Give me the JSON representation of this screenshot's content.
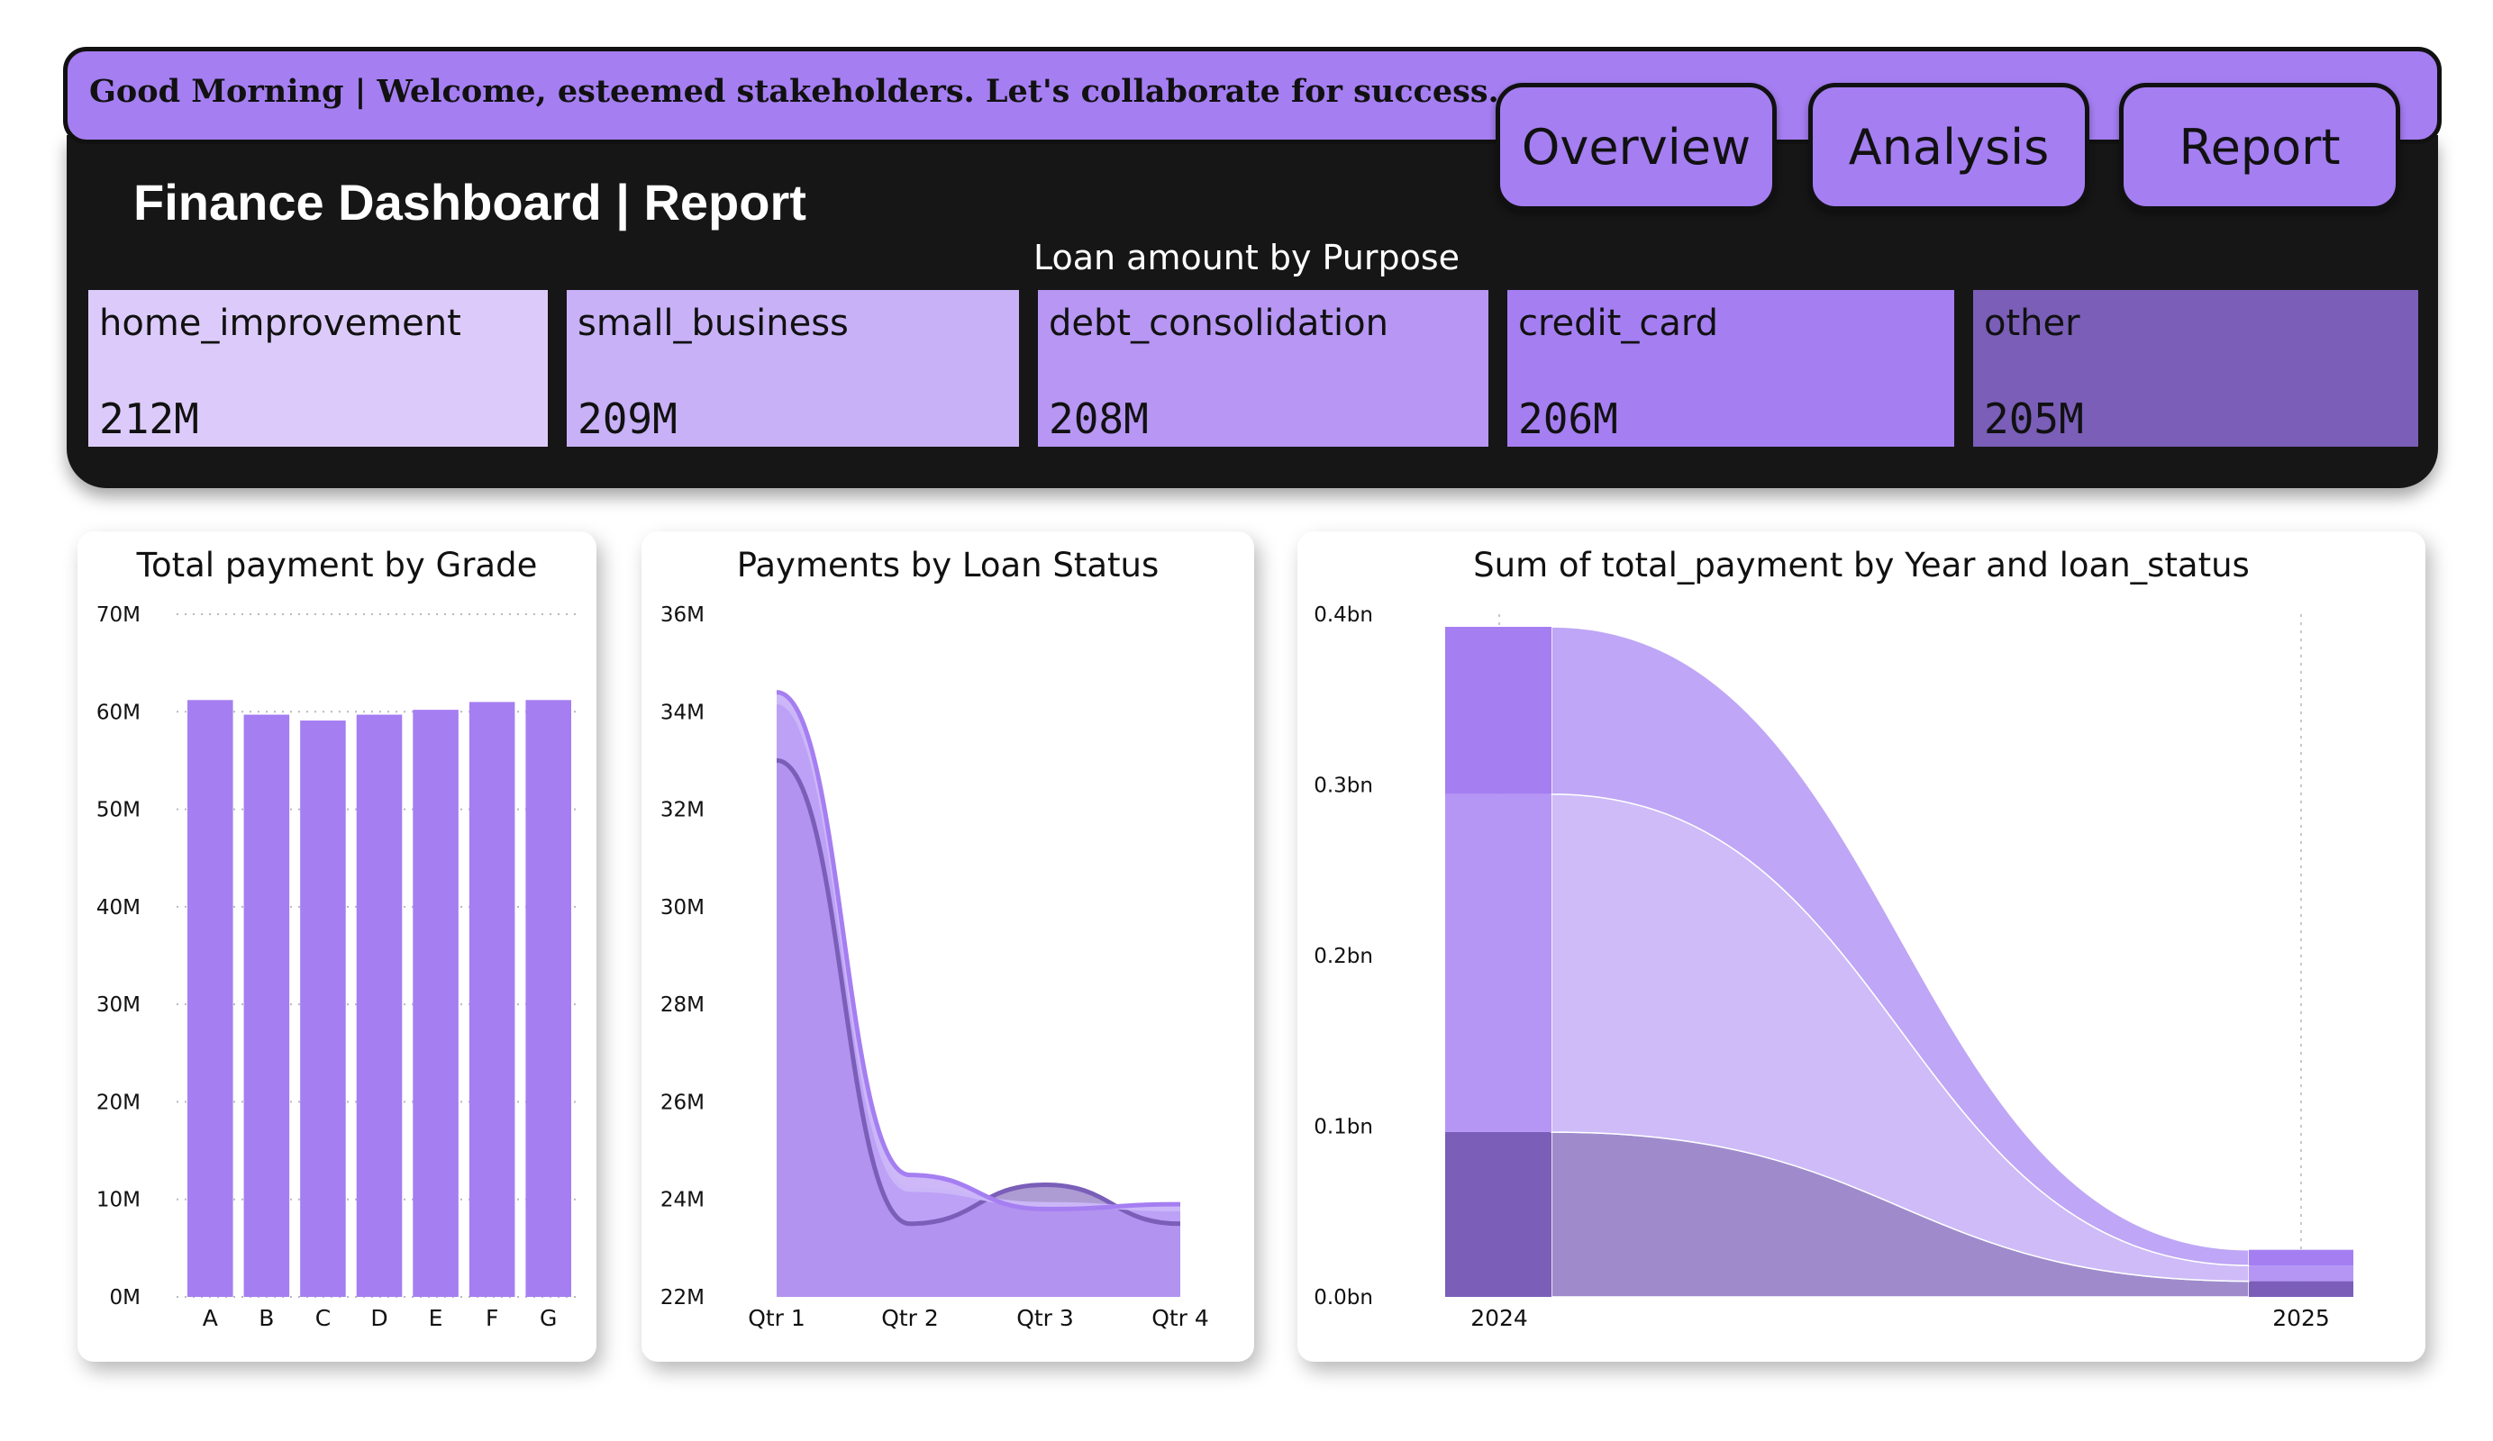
{
  "header": {
    "greeting": "Good Morning | Welcome, esteemed stakeholders. Let's collaborate for success.",
    "title": "Finance Dashboard | Report",
    "nav": [
      "Overview",
      "Analysis",
      "Report"
    ]
  },
  "purpose": {
    "title": "Loan amount by Purpose",
    "tiles": [
      {
        "label": "home_improvement",
        "value": "212M",
        "color": "#dccbfa"
      },
      {
        "label": "small_business",
        "value": "209M",
        "color": "#c8b1f7"
      },
      {
        "label": "debt_consolidation",
        "value": "208M",
        "color": "#b796f4"
      },
      {
        "label": "credit_card",
        "value": "206M",
        "color": "#a57ef2"
      },
      {
        "label": "other",
        "value": "205M",
        "color": "#7a5eb8"
      }
    ]
  },
  "charts": {
    "grade": {
      "title": "Total payment by Grade",
      "y_ticks": [
        "70M",
        "60M",
        "50M",
        "40M",
        "30M",
        "20M",
        "10M",
        "0M"
      ]
    },
    "status": {
      "title": "Payments by Loan Status",
      "y_ticks": [
        "36M",
        "34M",
        "32M",
        "30M",
        "28M",
        "26M",
        "24M",
        "22M"
      ]
    },
    "year": {
      "title": "Sum of total_payment by Year and loan_status",
      "y_ticks": [
        "0.4bn",
        "0.3bn",
        "0.2bn",
        "0.1bn",
        "0.0bn"
      ]
    }
  },
  "colors": {
    "accent": "#a57ef2",
    "accent_light": "#cbb7f8",
    "accent_dark": "#7a5eb8",
    "header_bg": "#161616"
  },
  "chart_data": [
    {
      "type": "bar",
      "title": "Total payment by Grade",
      "categories": [
        "A",
        "B",
        "C",
        "D",
        "E",
        "F",
        "G"
      ],
      "values": [
        61.2,
        59.7,
        59.1,
        59.7,
        60.2,
        61.0,
        61.2
      ],
      "unit": "M",
      "ylim": [
        0,
        70
      ],
      "grid": true
    },
    {
      "type": "area",
      "title": "Payments by Loan Status",
      "categories": [
        "Qtr 1",
        "Qtr 2",
        "Qtr 3",
        "Qtr 4"
      ],
      "series": [
        {
          "values": [
            34.4,
            24.5,
            23.8,
            23.9
          ],
          "color": "#a57ef2"
        },
        {
          "values": [
            34.2,
            24.2,
            23.9,
            23.8
          ],
          "color": "#cbb7f8"
        },
        {
          "values": [
            33.0,
            23.5,
            24.3,
            23.5
          ],
          "color": "#7a5eb8"
        }
      ],
      "ylim": [
        22,
        36
      ],
      "unit": "M"
    },
    {
      "type": "area",
      "subtype": "ribbon",
      "title": "Sum of total_payment by Year and loan_status",
      "categories": [
        "2024",
        "2025"
      ],
      "series": [
        {
          "values": [
            0.0966,
            0.0092
          ],
          "color": "#7a5eb8"
        },
        {
          "values": [
            0.198,
            0.0092
          ],
          "color": "#c8b1f7"
        },
        {
          "values": [
            0.098,
            0.0092
          ],
          "color": "#a57ef2"
        }
      ],
      "ylim": [
        0,
        0.4
      ],
      "unit": "bn"
    }
  ]
}
